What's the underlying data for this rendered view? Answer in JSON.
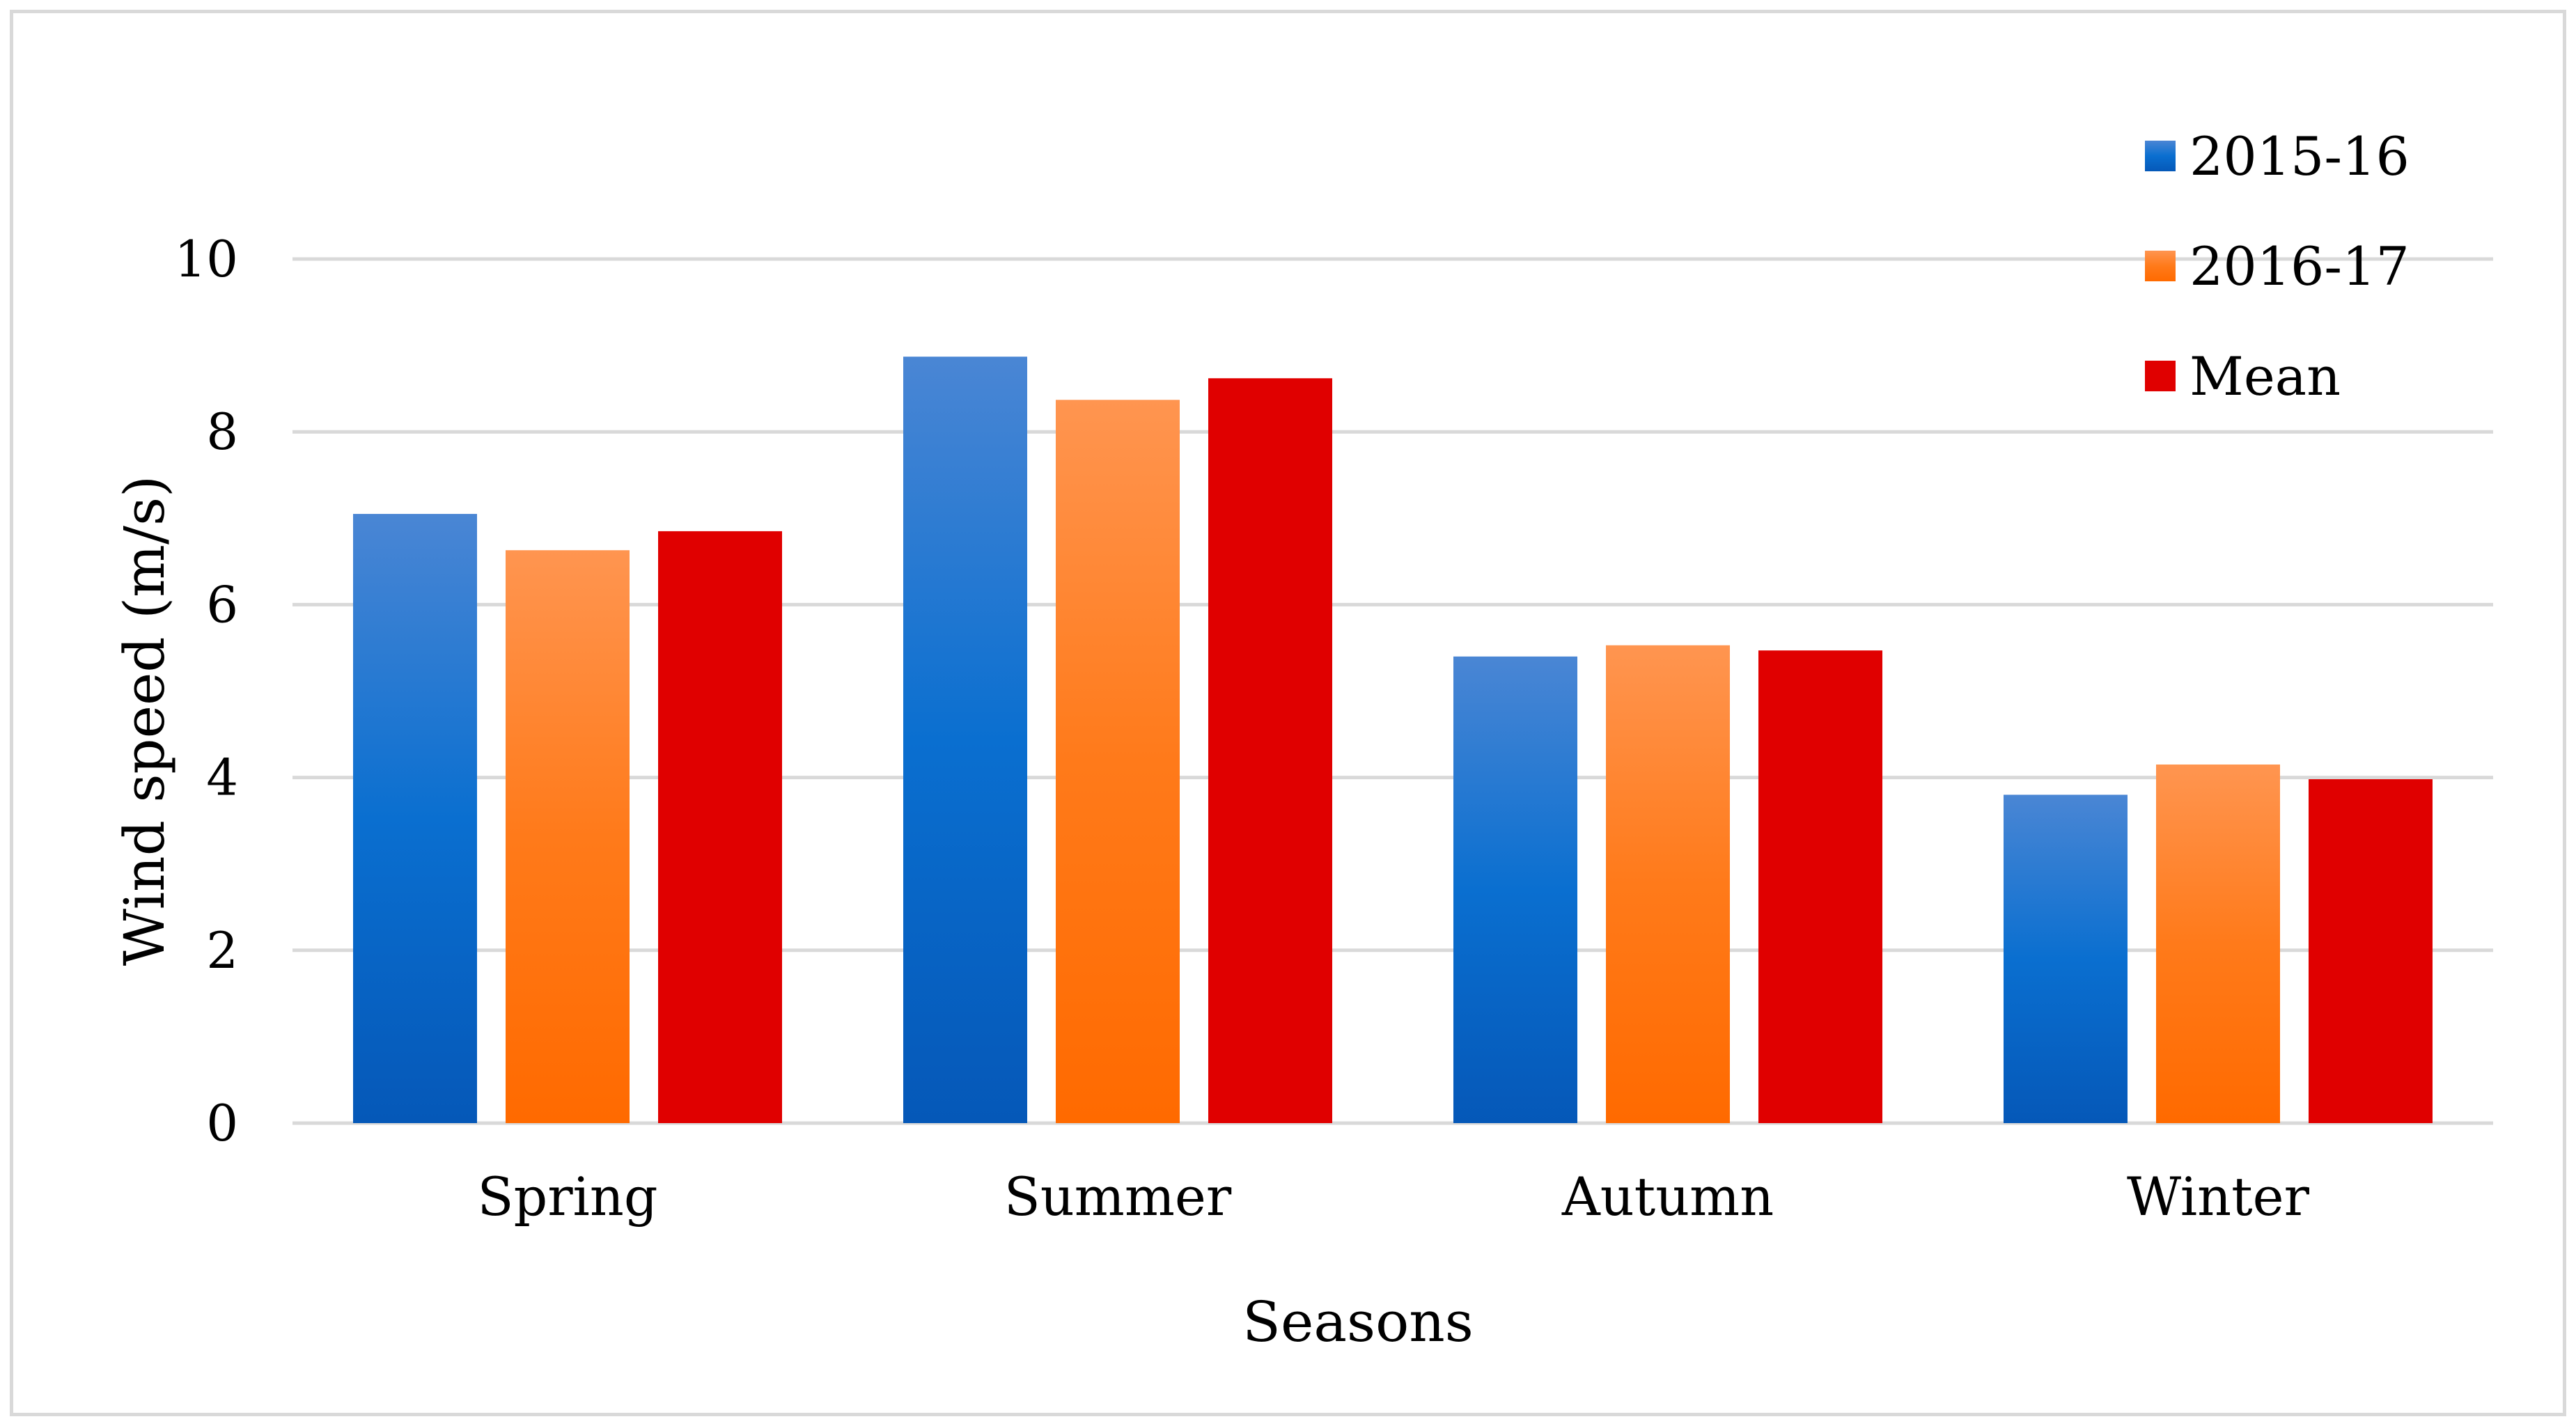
{
  "chart_data": {
    "type": "bar",
    "title": "",
    "xlabel": "Seasons",
    "ylabel": "Wind speed (m/s)",
    "ylim": [
      0,
      10
    ],
    "yticks": [
      0,
      2,
      4,
      6,
      8,
      10
    ],
    "ytick_labels": [
      "0",
      "2",
      "4",
      "6",
      "8",
      "10"
    ],
    "grid": true,
    "legend_position": "top-right",
    "categories": [
      "Spring",
      "Summer",
      "Autumn",
      "Winter"
    ],
    "series": [
      {
        "name": "2015-16",
        "color": "#2e74c6",
        "values": [
          7.05,
          8.87,
          5.4,
          3.8
        ]
      },
      {
        "name": "2016-17",
        "color": "#ff7f27",
        "values": [
          6.63,
          8.37,
          5.53,
          4.15
        ]
      },
      {
        "name": "Mean",
        "color": "#e00000",
        "values": [
          6.85,
          8.62,
          5.47,
          3.98
        ]
      }
    ]
  }
}
